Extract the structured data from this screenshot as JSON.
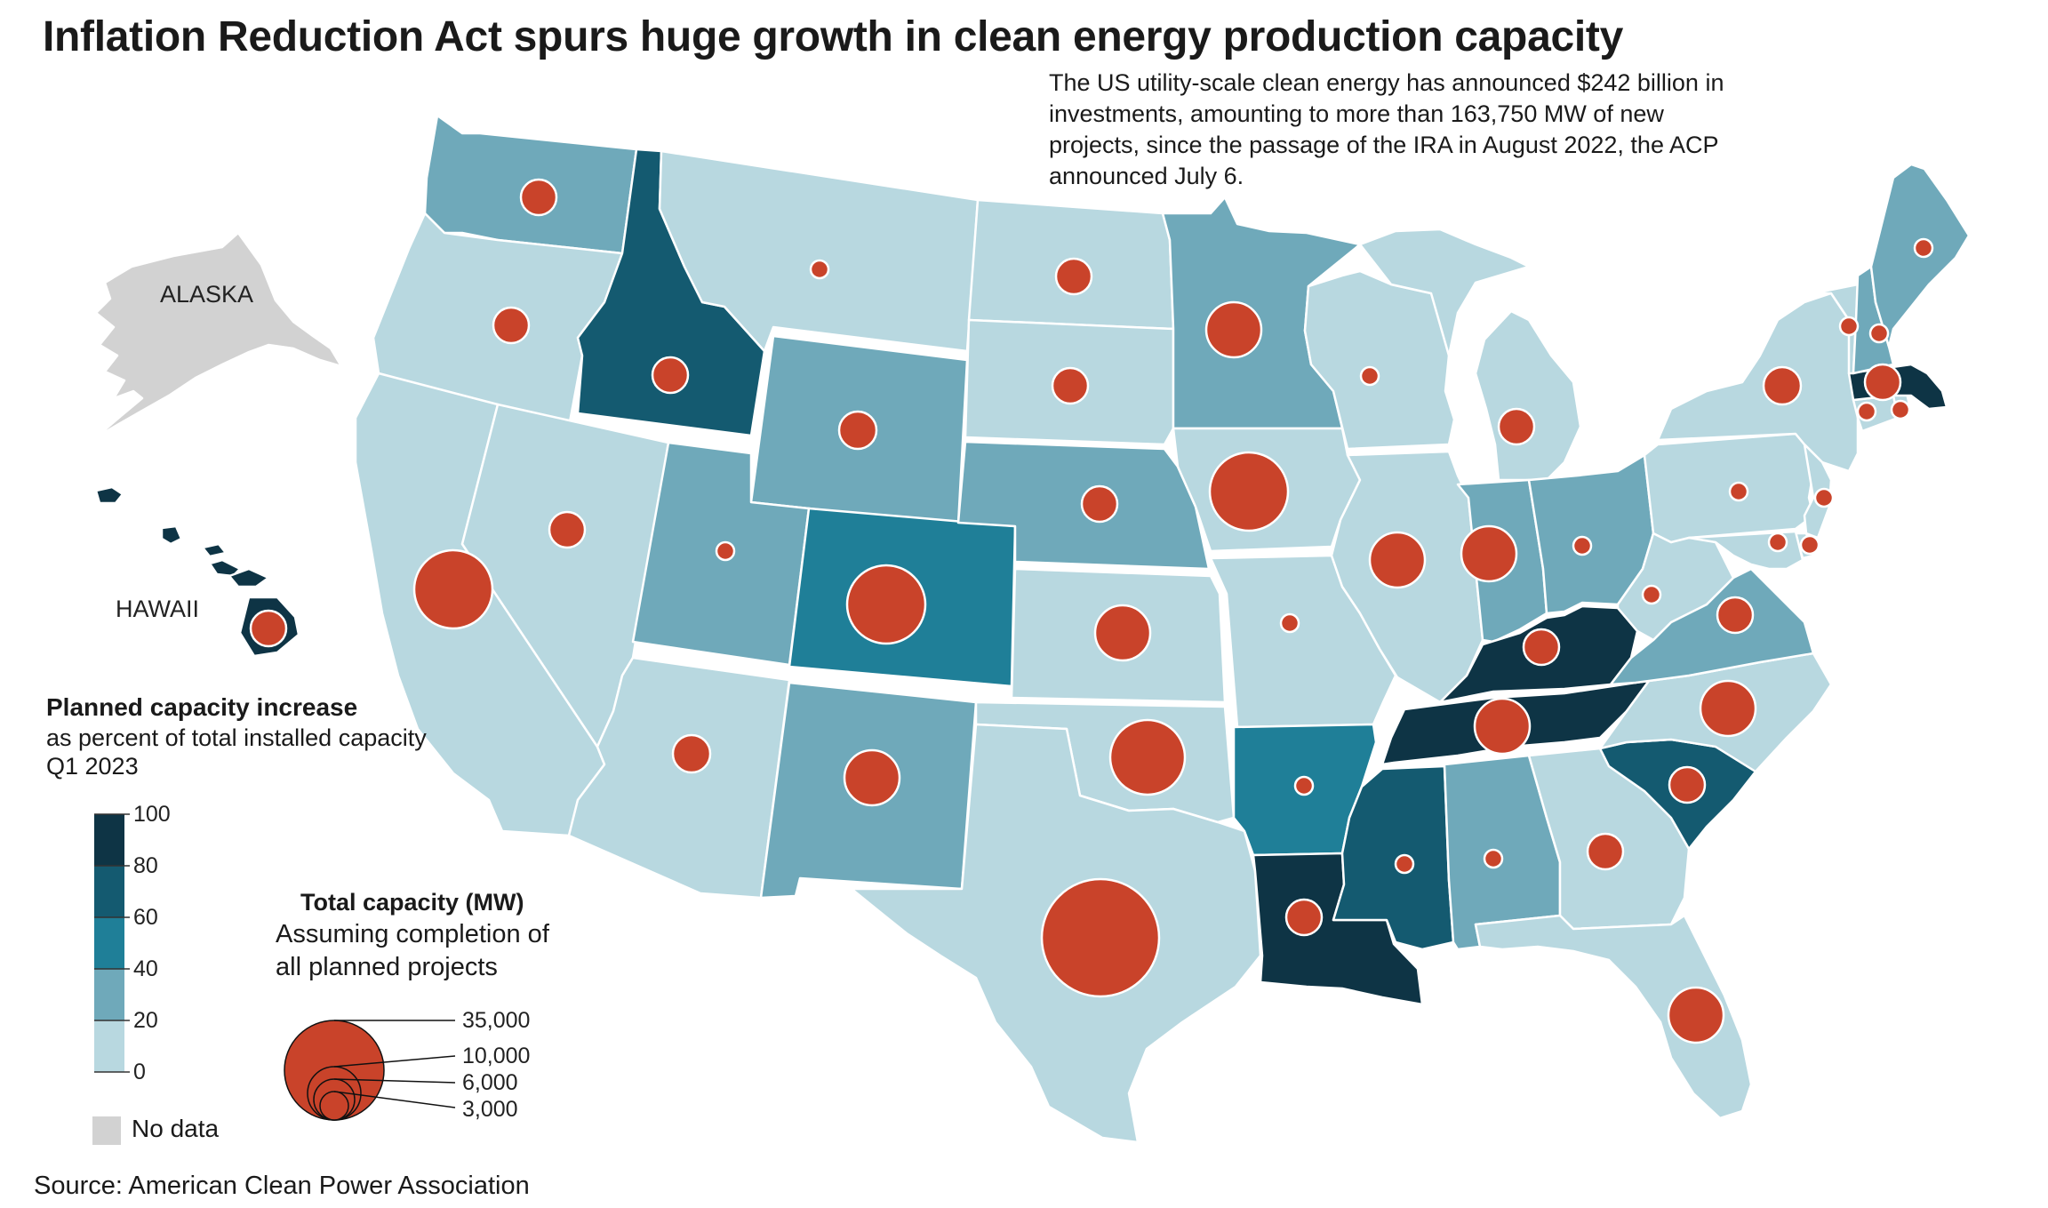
{
  "title": "Inflation Reduction Act spurs huge growth in clean energy production capacity",
  "subtitle": "The US utility-scale clean energy has announced $242 billion in investments, amounting to more than 163,750 MW of new projects, since the passage of the IRA in August 2022, the ACP announced July 6.",
  "source": "Source: American Clean Power Association",
  "colors": {
    "bin_0_20": "#b8d8e0",
    "bin_20_40": "#6fa9ba",
    "bin_40_60": "#1f7f98",
    "bin_60_80": "#145a70",
    "bin_80_100": "#0e3445",
    "no_data": "#d2d2d2",
    "bubble": "#c9432a"
  },
  "map_labels": {
    "alaska": "ALASKA",
    "hawaii": "HAWAII"
  },
  "color_legend": {
    "title": "Planned capacity increase",
    "subtitle": "as percent of total installed capacity Q1 2023",
    "ticks": [
      "100",
      "80",
      "60",
      "40",
      "20",
      "0"
    ],
    "no_data_label": "No data"
  },
  "size_legend": {
    "title": "Total capacity (MW)",
    "subtitle": "Assuming completion of all planned projects",
    "values": [
      "35,000",
      "10,000",
      "6,000",
      "3,000"
    ]
  }
}
